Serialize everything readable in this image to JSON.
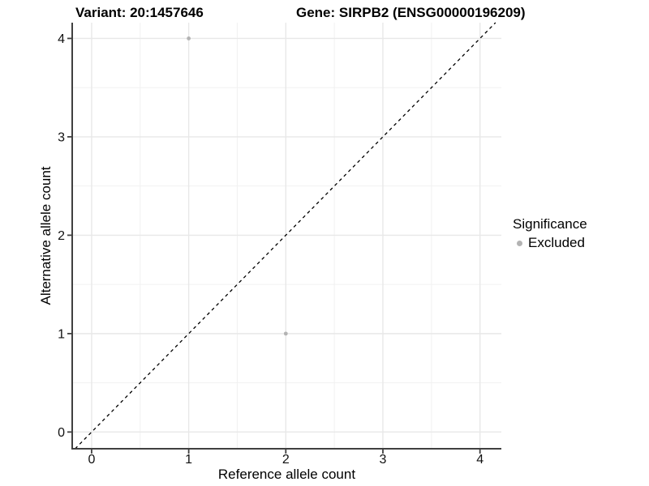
{
  "chart_data": {
    "type": "scatter",
    "title_left": "Variant: 20:1457646",
    "title_right": "Gene: SIRPB2 (ENSG00000196209)",
    "xlabel": "Reference allele count",
    "ylabel": "Alternative allele count",
    "x_ticks": [
      0,
      1,
      2,
      3,
      4
    ],
    "y_ticks": [
      0,
      1,
      2,
      3,
      4
    ],
    "x_minor_ticks": [
      0.5,
      1.5,
      2.5,
      3.5
    ],
    "y_minor_ticks": [
      0.5,
      1.5,
      2.5,
      3.5
    ],
    "xlim": [
      -0.2,
      4.22
    ],
    "ylim": [
      -0.17,
      4.16
    ],
    "grid": true,
    "legend_position": "right",
    "identity_line": {
      "type": "dashed",
      "slope": 1,
      "intercept": 0,
      "color": "#000000"
    },
    "series": [
      {
        "name": "Excluded",
        "color": "#b3b3b3",
        "points": [
          [
            1,
            4
          ],
          [
            2,
            1
          ]
        ]
      }
    ],
    "legend": {
      "title": "Significance",
      "items": [
        {
          "label": "Excluded",
          "color": "#b3b3b3"
        }
      ]
    }
  },
  "colors": {
    "background": "#ffffff",
    "grid_major": "#e8e8e8",
    "grid_minor": "#f1f1f1",
    "axis_line": "#404040",
    "tick_mark": "#404040",
    "text": "#000000",
    "point": "#b3b3b3"
  }
}
